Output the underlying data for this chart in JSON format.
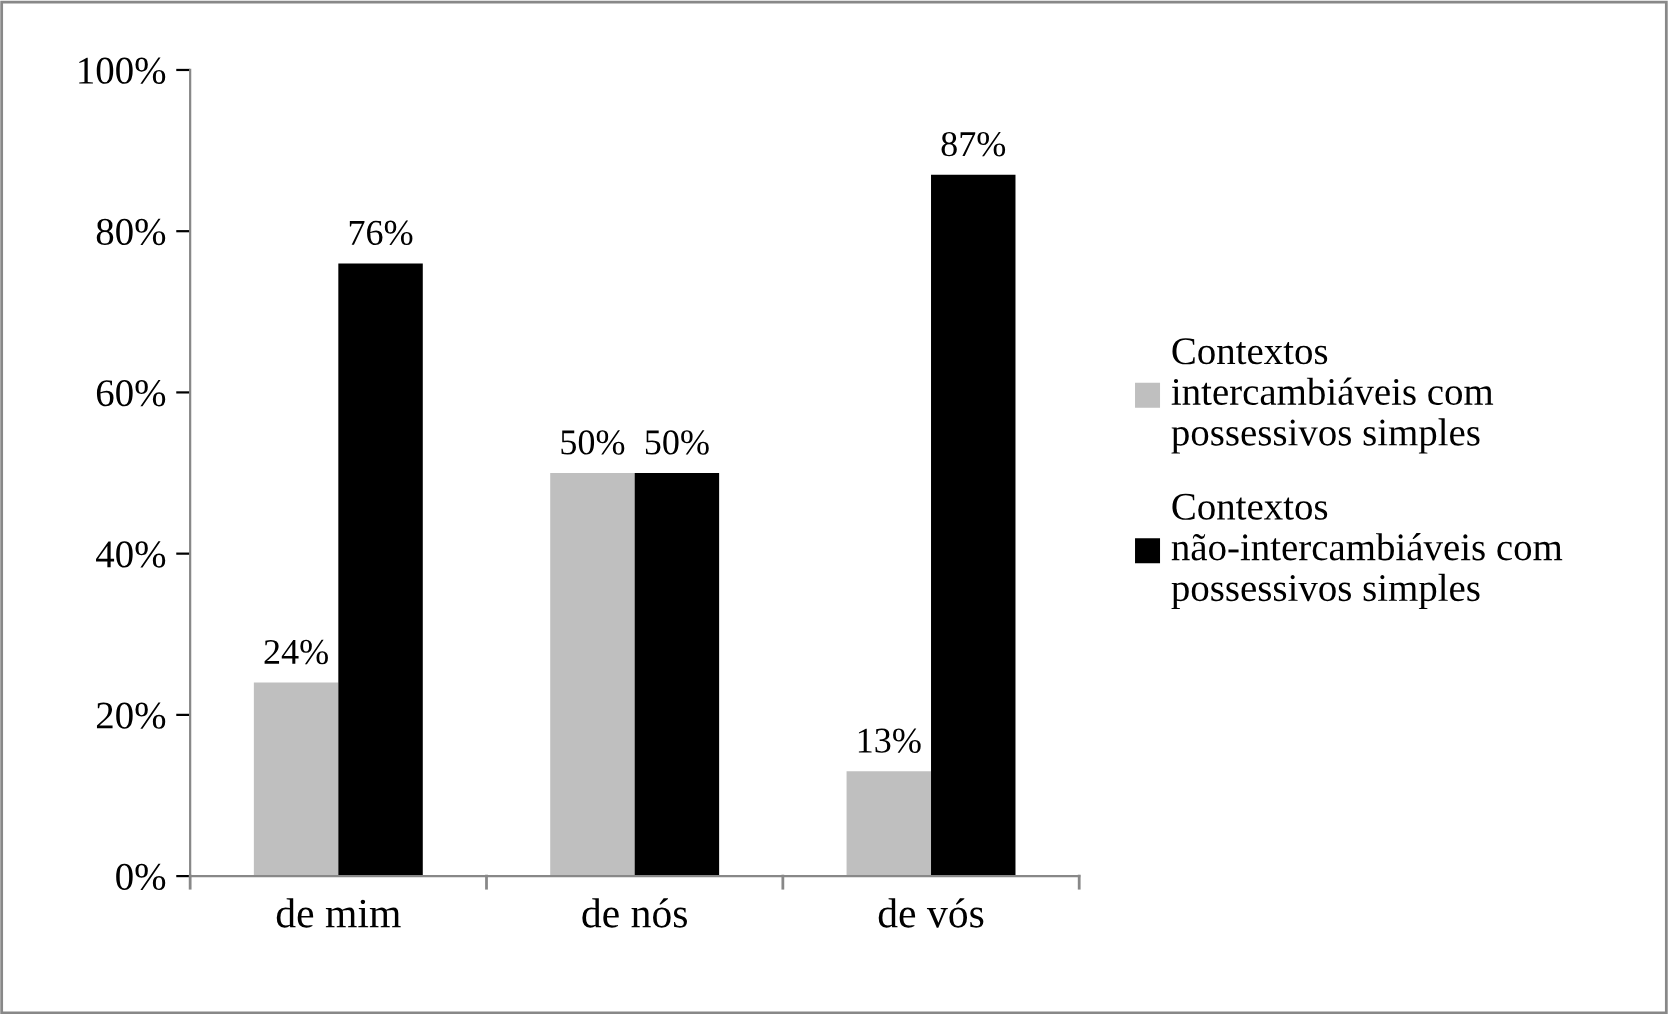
{
  "chart_data": {
    "type": "bar",
    "categories": [
      "de mim",
      "de nós",
      "de vós"
    ],
    "series": [
      {
        "name": "Contextos intercambiáveis com possessivos simples",
        "color": "#bfbfbf",
        "values": [
          24,
          50,
          13
        ],
        "value_labels": [
          "24%",
          "50%",
          "13%"
        ]
      },
      {
        "name": "Contextos não-intercambiáveis com possessivos simples",
        "color": "#000000",
        "values": [
          76,
          50,
          87
        ],
        "value_labels": [
          "76%",
          "50%",
          "87%"
        ]
      }
    ],
    "ylim": [
      0,
      100
    ],
    "yticks": [
      {
        "value": 0,
        "label": "0%"
      },
      {
        "value": 20,
        "label": "20%"
      },
      {
        "value": 40,
        "label": "40%"
      },
      {
        "value": 60,
        "label": "60%"
      },
      {
        "value": 80,
        "label": "80%"
      },
      {
        "value": 100,
        "label": "100%"
      }
    ],
    "grid": false,
    "legend": "right"
  }
}
